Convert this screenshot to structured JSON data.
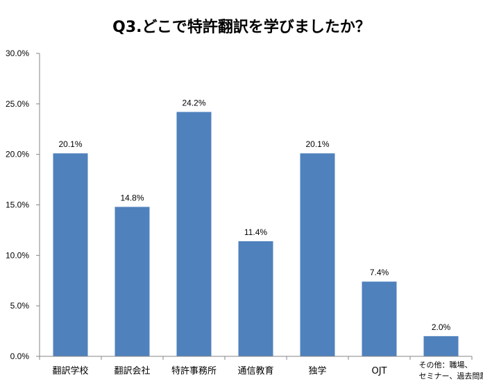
{
  "chart_data": {
    "type": "bar",
    "title": "Q3.どこで特許翻訳を学びましたか？",
    "categories": [
      [
        "翻訳学校"
      ],
      [
        "翻訳会社"
      ],
      [
        "特許事務所"
      ],
      [
        "通信教育"
      ],
      [
        "独学"
      ],
      [
        "OJT"
      ],
      [
        "その他：職場、",
        "セミナー、過去問題等"
      ]
    ],
    "values": [
      20.1,
      14.8,
      24.2,
      11.4,
      20.1,
      7.4,
      2.0
    ],
    "data_labels": [
      "20.1%",
      "14.8%",
      "24.2%",
      "11.4%",
      "20.1%",
      "7.4%",
      "2.0%"
    ],
    "y_ticks": [
      "0.0%",
      "5.0%",
      "10.0%",
      "15.0%",
      "20.0%",
      "25.0%",
      "30.0%"
    ],
    "ylim": [
      0,
      30
    ],
    "grid": false,
    "legend": "none",
    "bar_color": "#4F81BD",
    "axis_color": "#868686"
  }
}
